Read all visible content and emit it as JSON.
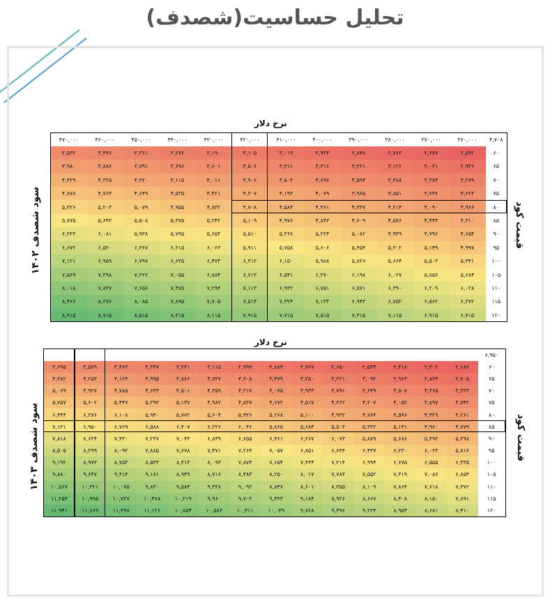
{
  "title": "تحلیل حساسیت(شصدف)",
  "table1": {
    "x_label": "نرخ دلار",
    "y_label": "سود شصدف ۱۴۰۲",
    "right_label": "قیمت کود",
    "corner": "۴,۷۰۸",
    "columns": [
      "۳۶۰,۰۰۰",
      "۳۷۰,۰۰۰",
      "۳۸۰,۰۰۰",
      "۳۹۰,۰۰۰",
      "۴۰۰,۰۰۰",
      "۴۱۰,۰۰۰",
      "۴۲۰,۰۰۰",
      "۴۳۰,۰۰۰",
      "۴۴۰,۰۰۰",
      "۴۵۰,۰۰۰",
      "۴۶۰,۰۰۰",
      "۴۷۰,۰۰۰"
    ],
    "rows": [
      {
        "label": "۶۰",
        "values": [
          "۲,۵۹۲",
          "۲,۶۷۷",
          "۲,۷۶۳",
          "۲,۸۴۸",
          "۲,۹۳۴",
          "۳,۰۱۹",
          "۳,۱۰۵",
          "۳,۱۹۰",
          "۳,۲۷۶",
          "۳,۳۶۱",
          "۳,۴۴۶",
          "۳,۵۳۲"
        ]
      },
      {
        "label": "۶۵",
        "values": [
          "۲,۹۳۶",
          "۳,۰۳۱",
          "۳,۱۲۶",
          "۳,۲۲۱",
          "۳,۳۱۶",
          "۳,۴۱۱",
          "۳,۵۰۶",
          "۳,۶۰۱",
          "۳,۶۹۶",
          "۳,۷۹۱",
          "۳,۸۸۶",
          "۳,۹۸۰"
        ]
      },
      {
        "label": "۷۰",
        "values": [
          "۳,۲۷۹",
          "۳,۳۸۴",
          "۳,۴۸۸",
          "۳,۵۹۳",
          "۳,۶۹۷",
          "۳,۸۰۲",
          "۳,۹۰۶",
          "۴,۰۱۱",
          "۴,۱۱۵",
          "۴,۲۲۰",
          "۴,۳۲۵",
          "۴,۴۲۹"
        ]
      },
      {
        "label": "۷۵",
        "values": [
          "۳,۶۲۳",
          "۳,۷۳۷",
          "۳,۸۵۱",
          "۳,۹۶۵",
          "۴,۰۷۹",
          "۴,۱۹۳",
          "۴,۳۰۷",
          "۴,۴۲۱",
          "۴,۵۳۵",
          "۴,۶۴۹",
          "۴,۷۶۴",
          "۴,۸۷۸"
        ]
      },
      {
        "label": "۸۰",
        "values": [
          "۳,۹۶۶",
          "۴,۰۹۰",
          "۴,۲۱۴",
          "۴,۳۳۷",
          "۴,۴۶۱",
          "۴,۵۸۴",
          "۴,۷۰۸",
          "۴,۸۳۲",
          "۴,۹۵۵",
          "۵,۰۷۹",
          "۵,۲۰۳",
          "۵,۳۲۶"
        ]
      },
      {
        "label": "۸۵",
        "values": [
          "۴,۳۱۰",
          "۴,۴۴۳",
          "۴,۵۷۶",
          "۴,۷۰۹",
          "۴,۸۴۳",
          "۴,۹۷۶",
          "۵,۱۰۹",
          "۵,۲۴۲",
          "۵,۳۷۵",
          "۵,۵۰۸",
          "۵,۶۴۲",
          "۵,۷۷۵"
        ]
      },
      {
        "label": "۹۰",
        "values": [
          "۴,۶۵۴",
          "۴,۷۹۶",
          "۴,۹۳۹",
          "۵,۰۸۲",
          "۵,۲۲۴",
          "۵,۳۶۷",
          "۵,۵۱۰",
          "۵,۶۵۳",
          "۵,۷۹۵",
          "۵,۹۳۸",
          "۶,۰۸۱",
          "۶,۲۲۳"
        ]
      },
      {
        "label": "۹۵",
        "values": [
          "۴,۹۹۷",
          "۵,۱۴۹",
          "۵,۳۰۲",
          "۵,۴۵۴",
          "۵,۶۰۶",
          "۵,۷۵۸",
          "۵,۹۱۱",
          "۶,۰۶۳",
          "۶,۲۱۵",
          "۶,۳۶۷",
          "۶,۵۲۰",
          "۶,۶۷۲"
        ]
      },
      {
        "label": "۱۰۰",
        "values": [
          "۵,۳۴۱",
          "۵,۵۰۳",
          "۵,۶۶۴",
          "۵,۸۲۶",
          "۵,۹۸۸",
          "۶,۱۵۰",
          "۶,۳۱۲",
          "۶,۴۷۳",
          "۶,۶۳۵",
          "۶,۷۹۷",
          "۶,۹۵۹",
          "۷,۱۲۱"
        ]
      },
      {
        "label": "۱۰۵",
        "values": [
          "۵,۶۸۴",
          "۵,۸۵۶",
          "۶,۰۲۷",
          "۶,۱۹۸",
          "۶,۳۷۰",
          "۶,۵۴۱",
          "۶,۷۱۳",
          "۶,۸۸۴",
          "۷,۰۵۵",
          "۷,۲۲۶",
          "۷,۳۹۸",
          "۷,۵۶۹"
        ]
      },
      {
        "label": "۱۱۰",
        "values": [
          "۶,۰۲۸",
          "۶,۲۰۹",
          "۶,۳۹۰",
          "۶,۵۷۱",
          "۶,۷۵۱",
          "۶,۹۳۲",
          "۷,۱۱۳",
          "۷,۲۹۴",
          "۷,۴۷۵",
          "۷,۶۵۶",
          "۷,۸۳۷",
          "۸,۰۱۸"
        ]
      },
      {
        "label": "۱۱۵",
        "values": [
          "۶,۳۷۲",
          "۶,۵۶۲",
          "۶,۷۵۲",
          "۶,۹۴۳",
          "۷,۱۳۳",
          "۷,۳۲۴",
          "۷,۵۱۴",
          "۷,۷۰۵",
          "۷,۸۹۵",
          "۸,۰۸۵",
          "۸,۲۷۶",
          "۸,۴۶۶"
        ]
      },
      {
        "label": "۱۲۰",
        "values": [
          "۶,۷۱۵",
          "۶,۹۱۵",
          "۷,۱۱۵",
          "۷,۳۱۵",
          "۷,۵۱۵",
          "۷,۷۱۵",
          "۷,۹۱۵",
          "۸,۱۱۵",
          "۸,۳۱۵",
          "۸,۵۱۵",
          "۸,۷۱۵",
          "۸,۹۱۵"
        ]
      }
    ]
  },
  "table2": {
    "x_label": "نرخ دلار",
    "y_label": "سود شصدف ۱۴۰۳",
    "right_label": "قیمت کود",
    "corner": "۶,۹۵۰",
    "rows": [
      {
        "label": "۶۰",
        "values": [
          "۲,۱۸۶",
          "۲,۳۰۲",
          "۲,۴۱۸",
          "۲,۵۳۴",
          "۲,۶۵۰",
          "۲,۷۶۷",
          "۲,۸۸۳",
          "۲,۹۹۹",
          "۳,۱۱۵",
          "۳,۲۳۱",
          "۳,۳۴۷",
          "۳,۴۶۳",
          "۳,۵۷۹",
          "۳,۶۹۵"
        ]
      },
      {
        "label": "۶۵",
        "values": [
          "۲,۷۰۵",
          "۲,۸۳۴",
          "۲,۹۶۳",
          "۳,۰۹۲",
          "۳,۲۲۱",
          "۳,۳۵۰",
          "۳,۴۷۹",
          "۳,۶۰۸",
          "۳,۷۳۷",
          "۳,۸۶۶",
          "۳,۹۹۵",
          "۴,۱۲۴",
          "۴,۲۵۳",
          "۴,۳۸۲"
        ]
      },
      {
        "label": "۷۰",
        "values": [
          "۳,۲۲۳",
          "۳,۳۶۵",
          "۳,۵۰۷",
          "۳,۶۴۹",
          "۳,۷۹۱",
          "۳,۹۳۳",
          "۴,۰۷۵",
          "۴,۲۱۷",
          "۴,۳۵۹",
          "۴,۵۰۱",
          "۴,۶۴۳",
          "۴,۷۸۵",
          "۴,۹۲۷",
          "۵,۰۶۹"
        ]
      },
      {
        "label": "۷۵",
        "values": [
          "۳,۷۴۲",
          "۳,۸۹۷",
          "۴,۰۵۲",
          "۴,۲۰۷",
          "۴,۳۶۲",
          "۴,۵۱۷",
          "۴,۶۷۲",
          "۴,۸۲۷",
          "۴,۹۸۲",
          "۵,۱۳۷",
          "۵,۲۹۲",
          "۵,۴۴۷",
          "۵,۶۰۲",
          "۵,۷۵۷"
        ]
      },
      {
        "label": "۸۰",
        "values": [
          "۴,۲۶۱",
          "۴,۴۲۹",
          "۴,۵۹۶",
          "۴,۷۶۴",
          "۴,۹۳۲",
          "۵,۱۰۰",
          "۵,۲۶۸",
          "۵,۴۳۶",
          "۵,۶۰۴",
          "۵,۷۷۲",
          "۵,۹۴۰",
          "۶,۱۰۸",
          "۶,۲۷۶",
          "۶,۴۴۴"
        ]
      },
      {
        "label": "۸۵",
        "values": [
          "۴,۷۷۹",
          "۴,۹۶۰",
          "۵,۱۴۱",
          "۵,۳۲۲",
          "۵,۵۰۳",
          "۵,۶۸۴",
          "۵,۸۶۵",
          "۶,۰۴۶",
          "۶,۲۲۶",
          "۶,۴۰۷",
          "۶,۵۸۸",
          "۶,۷۶۹",
          "۶,۹۵۰",
          "۷,۱۳۱"
        ]
      },
      {
        "label": "۹۰",
        "values": [
          "۵,۲۹۸",
          "۵,۴۹۲",
          "۵,۶۸۶",
          "۵,۸۷۹",
          "۶,۰۷۳",
          "۶,۲۶۷",
          "۶,۴۶۱",
          "۶,۶۵۵",
          "۶,۸۴۹",
          "۷,۰۴۳",
          "۷,۲۳۷",
          "۷,۴۳۰",
          "۷,۶۲۴",
          "۷,۸۱۸"
        ]
      },
      {
        "label": "۹۵",
        "values": [
          "۵,۸۱۶",
          "۶,۰۲۳",
          "۶,۲۳۰",
          "۶,۴۳۷",
          "۶,۶۴۴",
          "۶,۸۵۱",
          "۷,۰۵۷",
          "۷,۲۶۴",
          "۷,۴۷۱",
          "۷,۶۷۸",
          "۷,۸۸۵",
          "۸,۰۹۲",
          "۸,۲۹۹",
          "۸,۵۰۵"
        ]
      },
      {
        "label": "۱۰۰",
        "values": [
          "۶,۳۳۵",
          "۶,۵۵۵",
          "۶,۷۷۵",
          "۶,۹۹۴",
          "۷,۲۱۴",
          "۷,۴۳۴",
          "۷,۶۵۴",
          "۷,۸۷۴",
          "۸,۰۹۳",
          "۸,۳۱۳",
          "۸,۵۳۳",
          "۸,۷۵۳",
          "۸,۹۷۳",
          "۹,۱۹۲"
        ]
      },
      {
        "label": "۱۰۵",
        "values": [
          "۶,۸۵۴",
          "۷,۰۸۶",
          "۷,۳۱۹",
          "۷,۵۵۲",
          "۷,۷۸۴",
          "۸,۰۱۷",
          "۸,۲۵۰",
          "۸,۴۸۳",
          "۸,۷۱۶",
          "۸,۹۴۹",
          "۹,۱۸۱",
          "۹,۴۱۴",
          "۹,۶۴۷",
          "۹,۸۸۰"
        ]
      },
      {
        "label": "۱۱۰",
        "values": [
          "۷,۳۷۲",
          "۷,۶۱۸",
          "۷,۸۶۴",
          "۸,۱۰۹",
          "۸,۳۵۵",
          "۸,۶۰۱",
          "۸,۸۴۷",
          "۹,۰۹۲",
          "۹,۳۳۸",
          "۹,۵۸۴",
          "۹,۸۳۰",
          "۱۰,۰۷۵",
          "۱۰,۳۲۱",
          "۱۰,۵۶۷"
        ]
      },
      {
        "label": "۱۱۵",
        "values": [
          "۷,۸۹۱",
          "۸,۱۵۰",
          "۸,۴۰۸",
          "۸,۶۶۷",
          "۸,۹۲۶",
          "۹,۱۸۴",
          "۹,۴۴۳",
          "۹,۷۰۲",
          "۹,۹۶۰",
          "۱۰,۲۱۹",
          "۱۰,۴۷۸",
          "۱۰,۷۳۷",
          "۱۰,۹۹۵",
          "۱۱,۲۵۴"
        ]
      },
      {
        "label": "۱۲۰",
        "values": [
          "۸,۴۱۰",
          "۸,۶۸۱",
          "۸,۹۵۳",
          "۹,۲۲۴",
          "۹,۴۹۶",
          "۹,۷۶۸",
          "۱۰,۰۳۹",
          "۱۰,۳۱۱",
          "۱۰,۵۸۳",
          "۱۰,۸۵۴",
          "۱۱,۱۲۶",
          "۱۱,۳۹۸",
          "۱۱,۶۶۹",
          "۱۱,۹۴۱"
        ]
      }
    ]
  }
}
